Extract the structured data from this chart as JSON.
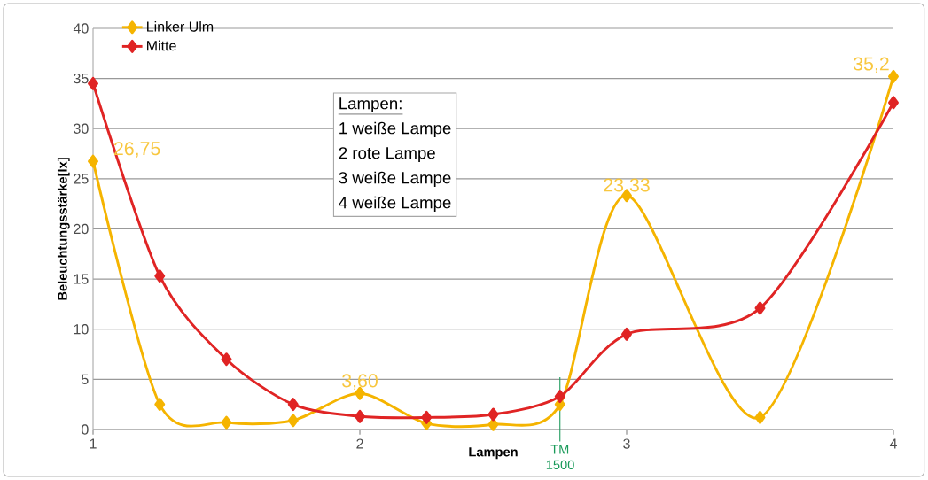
{
  "chart_data": {
    "type": "line",
    "xlabel": "Lampen",
    "ylabel": "Beleuchtungsstärke[lx]",
    "x": [
      1,
      1.25,
      1.5,
      1.75,
      2,
      2.25,
      2.5,
      2.75,
      3,
      3.5,
      4
    ],
    "series": [
      {
        "name": "Linker Ulm",
        "color": "#f5b400",
        "values": [
          26.75,
          2.5,
          0.7,
          0.9,
          3.6,
          0.6,
          0.5,
          2.5,
          23.33,
          1.2,
          35.2
        ],
        "value_labels": [
          "26,75",
          null,
          null,
          null,
          "3,60",
          null,
          null,
          null,
          "23.33",
          null,
          "35,2"
        ]
      },
      {
        "name": "Mitte",
        "color": "#e02424",
        "values": [
          34.5,
          15.3,
          7.0,
          2.5,
          1.3,
          1.2,
          1.5,
          3.3,
          9.5,
          12.1,
          32.6
        ]
      }
    ],
    "xlim": [
      1,
      4
    ],
    "xticks": [
      1,
      2,
      3,
      4
    ],
    "ylim": [
      0,
      40
    ],
    "yticks": [
      0,
      5,
      10,
      15,
      20,
      25,
      30,
      35,
      40
    ],
    "grid": "y",
    "legend": "top left",
    "marker": "diamond",
    "line_style": "solid",
    "ref_lines": [
      {
        "axis": "x",
        "value": 2.75,
        "label": "TM 1500",
        "color": "#1a9a5a"
      }
    ],
    "annotations": [
      "Lampen:",
      "1  weiße Lampe",
      "2  rote Lampe",
      "3  weiße Lampe",
      "4  weiße Lampe"
    ]
  }
}
